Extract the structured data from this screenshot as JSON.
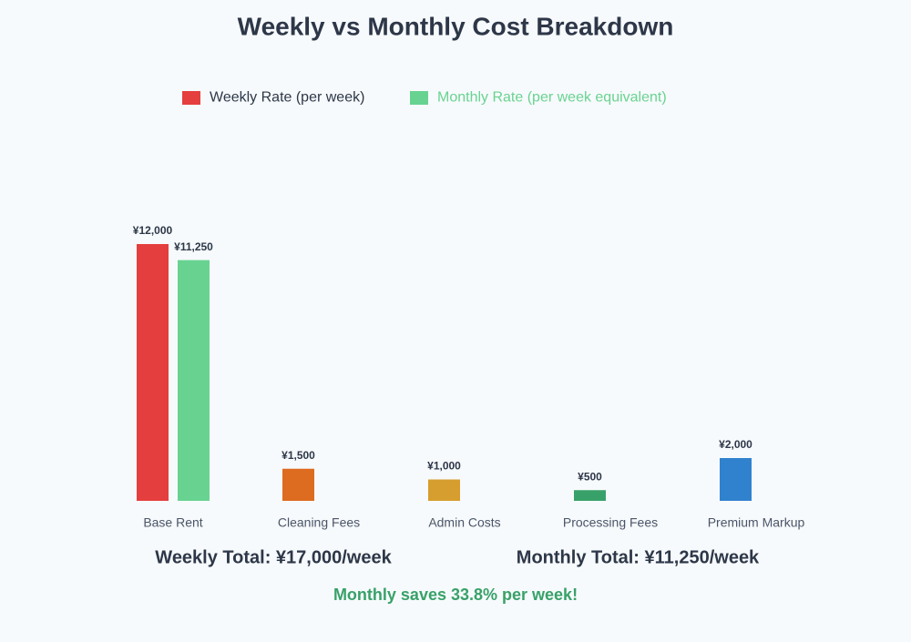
{
  "chart_data": {
    "type": "bar",
    "title": "Weekly vs Monthly Cost Breakdown",
    "categories": [
      "Base Rent",
      "Cleaning Fees",
      "Admin Costs",
      "Processing Fees",
      "Premium Markup"
    ],
    "series": [
      {
        "name": "Weekly Rate (per week)",
        "color": "#e53e3e",
        "colors": [
          "#e53e3e",
          "#dd6b20",
          "#d69e2e",
          "#38a169",
          "#3182ce"
        ],
        "values": [
          12000,
          1500,
          1000,
          500,
          2000
        ],
        "value_labels": [
          "¥12,000",
          "¥1,500",
          "¥1,000",
          "¥500",
          "¥2,000"
        ]
      },
      {
        "name": "Monthly Rate (per week equivalent)",
        "color": "#68d391",
        "values": [
          11250,
          null,
          null,
          null,
          null
        ],
        "value_labels": [
          "¥11,250",
          null,
          null,
          null,
          null
        ]
      }
    ],
    "annotations": [
      "Weekly Total: ¥17,000/week",
      "Monthly Total: ¥11,250/week",
      "Monthly saves 33.8% per week!"
    ]
  }
}
